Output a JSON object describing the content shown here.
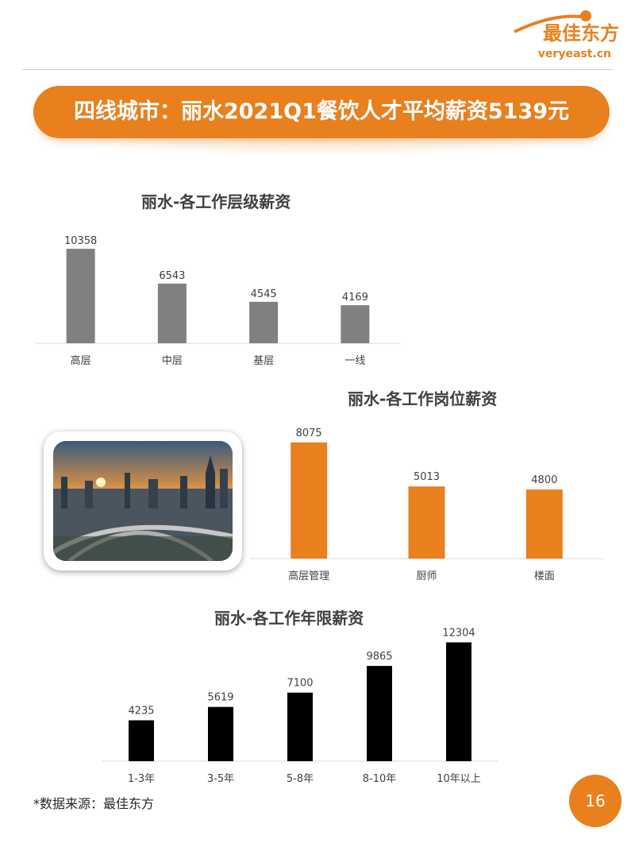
{
  "header": {
    "logo_text": "最佳东方",
    "logo_sub": "veryeast.cn",
    "banner_title": "四线城市：丽水2021Q1餐饮人才平均薪资5139元"
  },
  "chart_data": [
    {
      "type": "bar",
      "title": "丽水-各工作层级薪资",
      "categories": [
        "高层",
        "中层",
        "基层",
        "一线"
      ],
      "values": [
        10358,
        6543,
        4545,
        4169
      ],
      "color": "#808080",
      "ylim": [
        0,
        11500
      ],
      "grid": false
    },
    {
      "type": "bar",
      "title": "丽水-各工作岗位薪资",
      "categories": [
        "高层管理",
        "厨师",
        "楼面"
      ],
      "values": [
        8075,
        5013,
        4800
      ],
      "color": "#e8801e",
      "ylim": [
        0,
        9000
      ],
      "grid": false
    },
    {
      "type": "bar",
      "title": "丽水-各工作年限薪资",
      "categories": [
        "1-3年",
        "3-5年",
        "5-8年",
        "8-10年",
        "10年以上"
      ],
      "values": [
        4235,
        5619,
        7100,
        9865,
        12304
      ],
      "color": "#000000",
      "ylim": [
        0,
        13000
      ],
      "grid": false
    }
  ],
  "footer": {
    "source": "*数据来源：最佳东方",
    "page_number": "16"
  }
}
